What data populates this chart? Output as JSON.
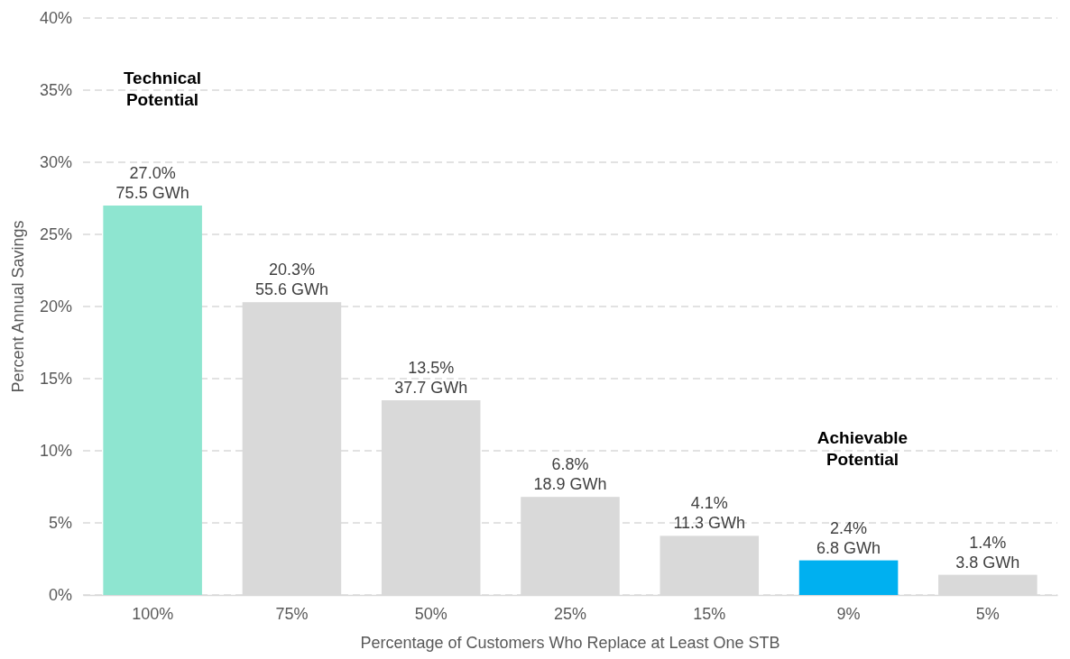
{
  "chart_data": {
    "type": "bar",
    "xlabel": "Percentage of Customers Who Replace at Least One STB",
    "ylabel": "Percent Annual Savings",
    "categories": [
      "100%",
      "75%",
      "50%",
      "25%",
      "15%",
      "9%",
      "5%"
    ],
    "values": [
      27.0,
      20.3,
      13.5,
      6.8,
      4.1,
      2.4,
      1.4
    ],
    "colors": [
      "#8ee5d0",
      "#d9d9d9",
      "#d9d9d9",
      "#d9d9d9",
      "#d9d9d9",
      "#00b0f0",
      "#d9d9d9"
    ],
    "value_labels": [
      "27.0%\n75.5 GWh",
      "20.3%\n55.6 GWh",
      "13.5%\n37.7 GWh",
      "6.8%\n18.9 GWh",
      "4.1%\n11.3 GWh",
      "2.4%\n6.8 GWh",
      "1.4%\n3.8 GWh"
    ],
    "ylim": [
      0,
      40
    ],
    "yticks": [
      {
        "value": 0,
        "label": "0%"
      },
      {
        "value": 5,
        "label": "5%"
      },
      {
        "value": 10,
        "label": "10%"
      },
      {
        "value": 15,
        "label": "15%"
      },
      {
        "value": 20,
        "label": "20%"
      },
      {
        "value": 25,
        "label": "25%"
      },
      {
        "value": 30,
        "label": "30%"
      },
      {
        "value": 35,
        "label": "35%"
      },
      {
        "value": 40,
        "label": "40%"
      }
    ],
    "grid": "y",
    "annotations": [
      "Technical\nPotential",
      "Achievable\nPotential"
    ]
  }
}
